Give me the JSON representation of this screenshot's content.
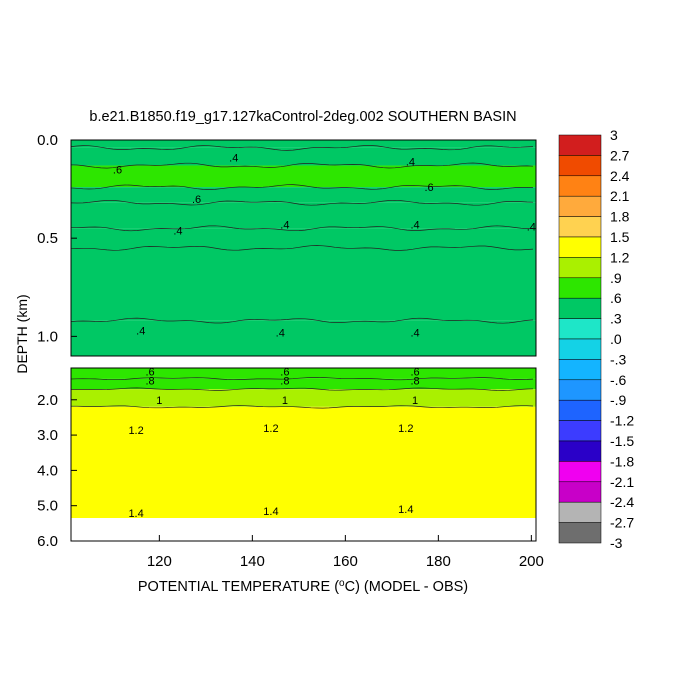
{
  "chart_data": {
    "type": "heatmap",
    "title": "b.e21.B1850.f19_g17.127kaControl-2deg.002 SOUTHERN BASIN",
    "xlabel_pre": "POTENTIAL TEMPERATURE (",
    "xlabel_sup": "o",
    "xlabel_post": "C) (MODEL - OBS)",
    "ylabel": "DEPTH (km)",
    "xlim": [
      101,
      201
    ],
    "x_ticks": [
      120,
      140,
      160,
      180,
      200
    ],
    "upper_panel": {
      "depth_range": [
        0.0,
        1.1
      ],
      "y_ticks": [
        {
          "value": 0.0,
          "label": "0.0"
        },
        {
          "value": 0.5,
          "label": "0.5"
        },
        {
          "value": 1.0,
          "label": "1.0"
        }
      ]
    },
    "lower_panel": {
      "depth_range": [
        1.1,
        6.0
      ],
      "data_bottom": 5.35,
      "y_ticks": [
        {
          "value": 2.0,
          "label": "2.0"
        },
        {
          "value": 3.0,
          "label": "3.0"
        },
        {
          "value": 4.0,
          "label": "4.0"
        },
        {
          "value": 5.0,
          "label": "5.0"
        },
        {
          "value": 6.0,
          "label": "6.0"
        }
      ]
    },
    "bands": [
      {
        "panel": "upper",
        "top": 0.0,
        "bottom": 0.04,
        "value": 0.45
      },
      {
        "panel": "upper",
        "top": 0.04,
        "bottom": 0.13,
        "value": 0.45
      },
      {
        "panel": "upper",
        "top": 0.13,
        "bottom": 0.24,
        "value": 0.62
      },
      {
        "panel": "upper",
        "top": 0.24,
        "bottom": 0.32,
        "value": 0.52
      },
      {
        "panel": "upper",
        "top": 0.32,
        "bottom": 0.45,
        "value": 0.42
      },
      {
        "panel": "upper",
        "top": 0.45,
        "bottom": 0.55,
        "value": 0.38
      },
      {
        "panel": "upper",
        "top": 0.55,
        "bottom": 0.92,
        "value": 0.3
      },
      {
        "panel": "upper",
        "top": 0.92,
        "bottom": 1.1,
        "value": 0.42
      },
      {
        "panel": "lower",
        "top": 1.1,
        "bottom": 1.4,
        "value": 0.65
      },
      {
        "panel": "lower",
        "top": 1.4,
        "bottom": 1.7,
        "value": 0.85
      },
      {
        "panel": "lower",
        "top": 1.7,
        "bottom": 2.2,
        "value": 1.05
      },
      {
        "panel": "lower",
        "top": 2.2,
        "bottom": 5.35,
        "value": 1.25
      }
    ],
    "contour_labels": [
      {
        "x": 111,
        "depth": 0.15,
        "label": ".6"
      },
      {
        "x": 136,
        "depth": 0.09,
        "label": ".4"
      },
      {
        "x": 174,
        "depth": 0.11,
        "label": ".4"
      },
      {
        "x": 178,
        "depth": 0.24,
        "label": ".6"
      },
      {
        "x": 128,
        "depth": 0.3,
        "label": ".6"
      },
      {
        "x": 124,
        "depth": 0.46,
        "label": ".4"
      },
      {
        "x": 147,
        "depth": 0.43,
        "label": ".4"
      },
      {
        "x": 175,
        "depth": 0.43,
        "label": ".4"
      },
      {
        "x": 200,
        "depth": 0.44,
        "label": ".4"
      },
      {
        "x": 116,
        "depth": 0.97,
        "label": ".4"
      },
      {
        "x": 146,
        "depth": 0.98,
        "label": ".4"
      },
      {
        "x": 175,
        "depth": 0.98,
        "label": ".4"
      },
      {
        "x": 118,
        "depth": 1.2,
        "label": ".6"
      },
      {
        "x": 147,
        "depth": 1.2,
        "label": ".6"
      },
      {
        "x": 175,
        "depth": 1.2,
        "label": ".6"
      },
      {
        "x": 118,
        "depth": 1.45,
        "label": ".8"
      },
      {
        "x": 147,
        "depth": 1.45,
        "label": ".8"
      },
      {
        "x": 175,
        "depth": 1.45,
        "label": ".8"
      },
      {
        "x": 120,
        "depth": 2.0,
        "label": "1"
      },
      {
        "x": 147,
        "depth": 2.0,
        "label": "1"
      },
      {
        "x": 175,
        "depth": 2.0,
        "label": "1"
      },
      {
        "x": 115,
        "depth": 2.85,
        "label": "1.2"
      },
      {
        "x": 144,
        "depth": 2.8,
        "label": "1.2"
      },
      {
        "x": 173,
        "depth": 2.8,
        "label": "1.2"
      },
      {
        "x": 115,
        "depth": 5.2,
        "label": "1.4"
      },
      {
        "x": 144,
        "depth": 5.15,
        "label": "1.4"
      },
      {
        "x": 173,
        "depth": 5.1,
        "label": "1.4"
      }
    ],
    "colorbar": {
      "min": -3,
      "max": 3,
      "labels": [
        "3",
        "2.7",
        "2.4",
        "2.1",
        "1.8",
        "1.5",
        "1.2",
        ".9",
        ".6",
        ".3",
        ".0",
        "-.3",
        "-.6",
        "-.9",
        "-1.2",
        "-1.5",
        "-1.8",
        "-2.1",
        "-2.4",
        "-2.7",
        "-3"
      ]
    }
  }
}
